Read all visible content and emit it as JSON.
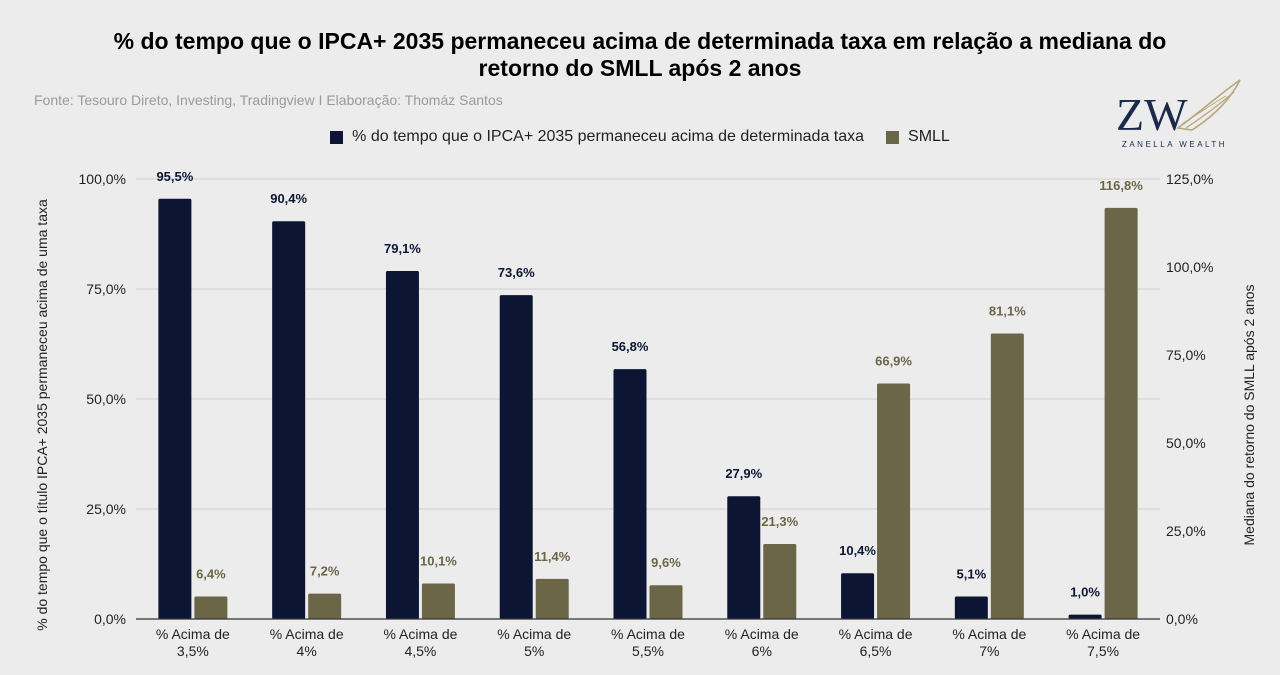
{
  "title_line1": "% do tempo que o IPCA+ 2035 permaneceu acima de determinada taxa em relação a mediana do",
  "title_line2": "retorno do SMLL após 2 anos",
  "source": "Fonte: Tesouro Direto, Investing, Tradingview I Elaboração: Thomáz Santos",
  "logo": {
    "mark": "ZW",
    "text": "ZANELLA WEALTH"
  },
  "colors": {
    "series1": "#0c1634",
    "series2": "#6b6648",
    "grid": "#cfcfcf",
    "background": "#ececec"
  },
  "chart_data": {
    "type": "bar",
    "categories": [
      [
        "% Acima de",
        "3,5%"
      ],
      [
        "% Acima de",
        "4%"
      ],
      [
        "% Acima de",
        "4,5%"
      ],
      [
        "% Acima de",
        "5%"
      ],
      [
        "% Acima de",
        "5,5%"
      ],
      [
        "% Acima de",
        "6%"
      ],
      [
        "% Acima de",
        "6,5%"
      ],
      [
        "% Acima de",
        "7%"
      ],
      [
        "% Acima de",
        "7,5%"
      ]
    ],
    "series": [
      {
        "name": "% do tempo que o IPCA+ 2035 permaneceu acima de determinada taxa",
        "axis": "left",
        "values": [
          95.5,
          90.4,
          79.1,
          73.6,
          56.8,
          27.9,
          10.4,
          5.1,
          1.0
        ],
        "labels": [
          "95,5%",
          "90,4%",
          "79,1%",
          "73,6%",
          "56,8%",
          "27,9%",
          "10,4%",
          "5,1%",
          "1,0%"
        ]
      },
      {
        "name": "SMLL",
        "axis": "right",
        "values": [
          6.4,
          7.2,
          10.1,
          11.4,
          9.6,
          21.3,
          66.9,
          81.1,
          116.8
        ],
        "labels": [
          "6,4%",
          "7,2%",
          "10,1%",
          "11,4%",
          "9,6%",
          "21,3%",
          "66,9%",
          "81,1%",
          "116,8%"
        ]
      }
    ],
    "y_left": {
      "label": "% do tempo que o título IPCA+ 2035 permaneceu acima de uma taxa",
      "range": [
        0,
        100
      ],
      "ticks": [
        0,
        25,
        50,
        75,
        100
      ],
      "tick_labels": [
        "0,0%",
        "25,0%",
        "50,0%",
        "75,0%",
        "100,0%"
      ]
    },
    "y_right": {
      "label": "Mediana do retorno do SMLL após 2 anos",
      "range": [
        0,
        125
      ],
      "ticks": [
        0,
        25,
        50,
        75,
        100,
        125
      ],
      "tick_labels": [
        "0,0%",
        "25,0%",
        "50,0%",
        "75,0%",
        "100,0%",
        "125,0%"
      ]
    },
    "grid": true,
    "legend_position": "top"
  }
}
